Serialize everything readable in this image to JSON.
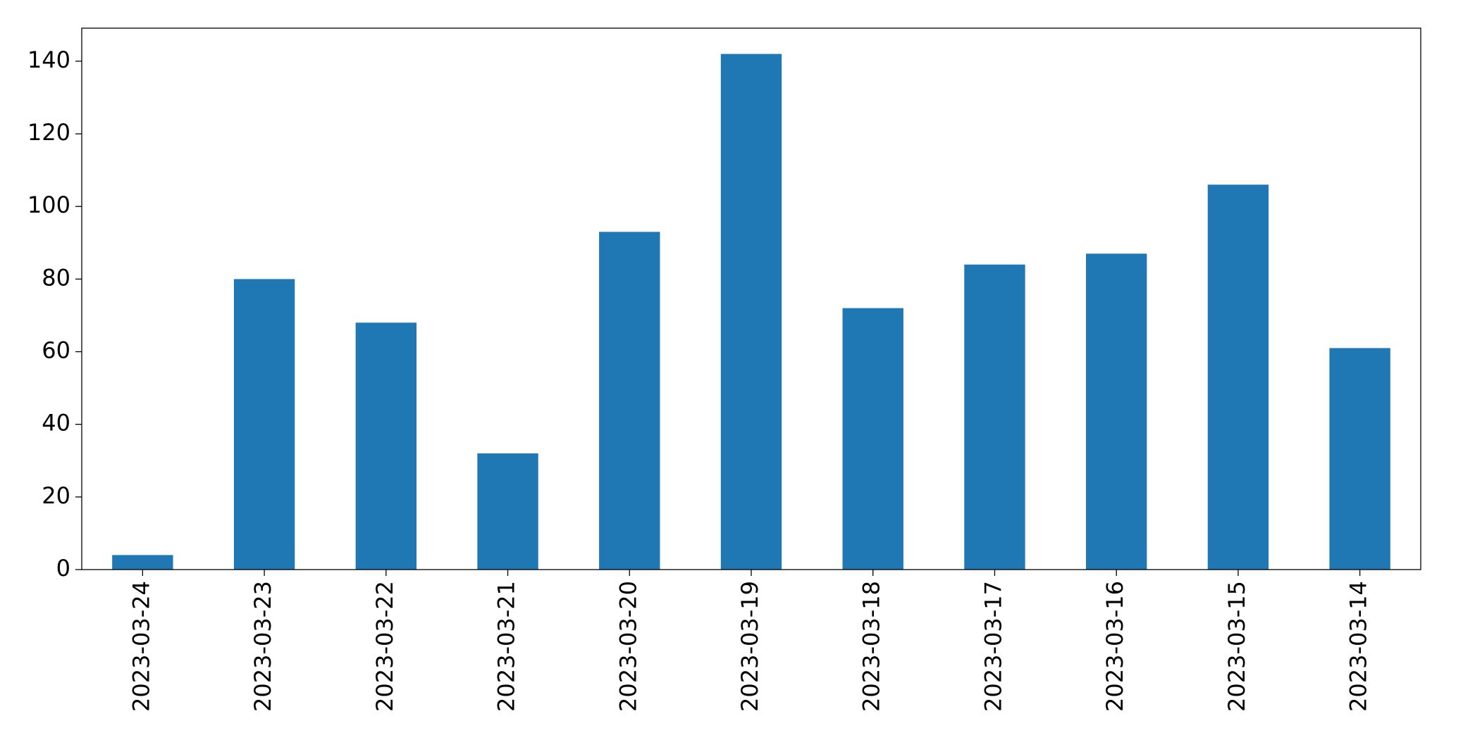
{
  "chart_data": {
    "type": "bar",
    "categories": [
      "2023-03-24",
      "2023-03-23",
      "2023-03-22",
      "2023-03-21",
      "2023-03-20",
      "2023-03-19",
      "2023-03-18",
      "2023-03-17",
      "2023-03-16",
      "2023-03-15",
      "2023-03-14"
    ],
    "values": [
      4,
      80,
      68,
      32,
      93,
      142,
      72,
      84,
      87,
      106,
      61
    ],
    "color": "#1f77b4",
    "ylim": [
      0,
      149.1
    ],
    "yticks": [
      0,
      20,
      40,
      60,
      80,
      100,
      120,
      140
    ],
    "grid": false
  }
}
